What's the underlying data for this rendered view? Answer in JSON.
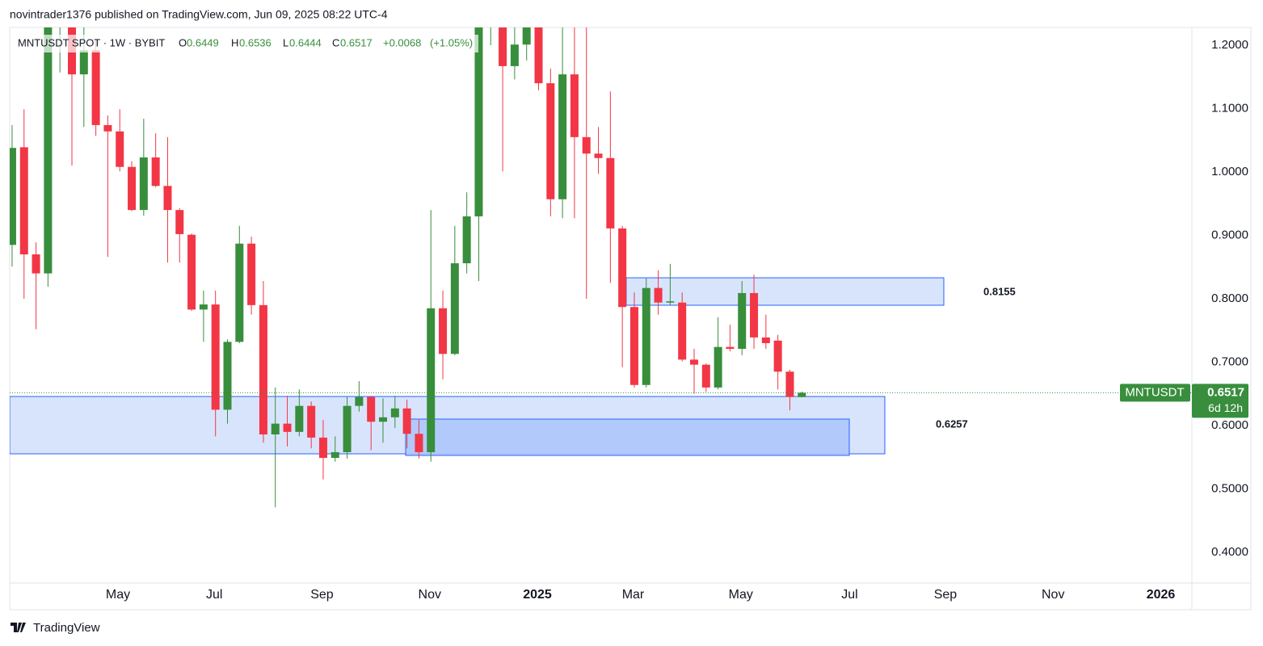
{
  "header": {
    "text": "novintrader1376 published on TradingView.com, Jun 09, 2025 08:22 UTC-4"
  },
  "legend": {
    "symbol": "MNTUSDT SPOT · 1W · BYBIT",
    "open_label": "O",
    "high_label": "H",
    "low_label": "L",
    "close_label": "C",
    "change": "+0.0068",
    "change_pct": "(+1.05%)"
  },
  "badge": {
    "countdown": "6d 12h"
  },
  "annotations": [
    {
      "text": "0.8155"
    },
    {
      "text": "0.6257"
    }
  ],
  "footer": {
    "brand": "TradingView"
  },
  "chart_data": {
    "type": "candlestick",
    "up_color": "#388e3c",
    "down_color": "#f23645",
    "xlim": [
      -0.2,
      98.6
    ],
    "xticks": [
      {
        "value": 8.85,
        "label": "May"
      },
      {
        "value": 16.9,
        "label": "Jul"
      },
      {
        "value": 25.9,
        "label": "Sep"
      },
      {
        "value": 34.9,
        "label": "Nov"
      },
      {
        "value": 43.9,
        "label": "2025"
      },
      {
        "value": 51.9,
        "label": "Mar"
      },
      {
        "value": 60.9,
        "label": "May"
      },
      {
        "value": 70,
        "label": "Jul"
      },
      {
        "value": 78,
        "label": "Sep"
      },
      {
        "value": 87,
        "label": "Nov"
      },
      {
        "value": 96,
        "label": "2026"
      }
    ],
    "ylim": [
      0.3516,
      1.228
    ],
    "yticks": [
      {
        "value": 0.4,
        "label": "0.4000"
      },
      {
        "value": 0.5,
        "label": "0.5000"
      },
      {
        "value": 0.6,
        "label": "0.6000"
      },
      {
        "value": 0.7,
        "label": "0.7000"
      },
      {
        "value": 0.8,
        "label": "0.8000"
      },
      {
        "value": 0.9,
        "label": "0.9000"
      },
      {
        "value": 1.0,
        "label": "1.0000"
      },
      {
        "value": 1.1,
        "label": "1.1000"
      },
      {
        "value": 1.2,
        "label": "1.2000"
      }
    ],
    "series": [
      {
        "name": "MNTUSDT",
        "open": [
          0.885,
          1.039,
          0.87,
          0.84,
          1.25,
          1.25,
          1.154,
          1.192,
          1.074,
          1.064,
          1.008,
          0.94,
          1.023,
          0.978,
          0.94,
          0.901,
          0.783,
          0.791,
          0.625,
          0.732,
          0.887,
          0.79,
          0.586,
          0.603,
          0.59,
          0.631,
          0.581,
          0.549,
          0.558,
          0.631,
          0.645,
          0.606,
          0.613,
          0.627,
          0.587,
          0.558,
          0.785,
          0.713,
          0.856,
          0.93,
          1.24,
          1.26,
          1.167,
          1.201,
          1.24,
          1.14,
          0.957,
          1.154,
          1.055,
          1.029,
          1.022,
          0.911,
          0.787,
          0.664,
          0.817,
          0.794,
          0.794,
          0.704,
          0.696,
          0.66,
          0.724,
          0.721,
          0.809,
          0.739,
          0.734,
          0.685,
          0.6449
        ],
        "high": [
          1.074,
          1.099,
          0.889,
          1.27,
          1.3,
          1.28,
          1.23,
          1.208,
          1.089,
          1.099,
          1.017,
          1.084,
          1.061,
          1.055,
          0.943,
          0.903,
          0.813,
          0.813,
          0.736,
          0.915,
          0.898,
          0.828,
          0.66,
          0.647,
          0.657,
          0.638,
          0.609,
          0.583,
          0.645,
          0.67,
          0.647,
          0.643,
          0.647,
          0.641,
          0.609,
          0.94,
          0.813,
          0.915,
          0.968,
          1.28,
          1.33,
          1.28,
          1.23,
          1.27,
          1.26,
          1.163,
          1.24,
          1.24,
          1.24,
          1.071,
          1.127,
          0.915,
          0.81,
          0.832,
          0.845,
          0.855,
          0.81,
          0.721,
          0.698,
          0.771,
          0.759,
          0.828,
          0.838,
          0.775,
          0.743,
          0.688,
          0.6536
        ],
        "low": [
          0.851,
          0.8,
          0.752,
          0.819,
          1.157,
          1.01,
          1.071,
          1.057,
          0.866,
          1.001,
          0.938,
          0.931,
          0.976,
          0.857,
          0.857,
          0.781,
          0.732,
          0.583,
          0.603,
          0.73,
          0.775,
          0.573,
          0.471,
          0.567,
          0.583,
          0.564,
          0.515,
          0.543,
          0.548,
          0.622,
          0.561,
          0.573,
          0.596,
          0.564,
          0.548,
          0.543,
          0.673,
          0.711,
          0.84,
          0.828,
          1.2,
          1.001,
          1.146,
          1.176,
          1.129,
          0.93,
          0.927,
          0.927,
          0.8,
          0.997,
          0.825,
          0.692,
          0.66,
          0.66,
          0.775,
          0.79,
          0.701,
          0.65,
          0.653,
          0.657,
          0.717,
          0.711,
          0.721,
          0.721,
          0.657,
          0.624,
          0.6444
        ],
        "close": [
          1.038,
          0.87,
          0.84,
          1.24,
          1.28,
          1.154,
          1.192,
          1.074,
          1.064,
          1.008,
          0.94,
          1.023,
          0.978,
          0.94,
          0.902,
          0.783,
          0.791,
          0.625,
          0.732,
          0.887,
          0.79,
          0.586,
          0.603,
          0.59,
          0.631,
          0.581,
          0.549,
          0.558,
          0.631,
          0.645,
          0.606,
          0.613,
          0.627,
          0.587,
          0.558,
          0.785,
          0.713,
          0.856,
          0.93,
          1.24,
          1.3,
          1.167,
          1.201,
          1.24,
          1.14,
          0.957,
          1.154,
          1.055,
          1.029,
          1.022,
          0.911,
          0.787,
          0.664,
          0.817,
          0.794,
          0.796,
          0.704,
          0.696,
          0.66,
          0.724,
          0.721,
          0.809,
          0.739,
          0.73,
          0.685,
          0.645,
          0.6517
        ]
      }
    ]
  }
}
